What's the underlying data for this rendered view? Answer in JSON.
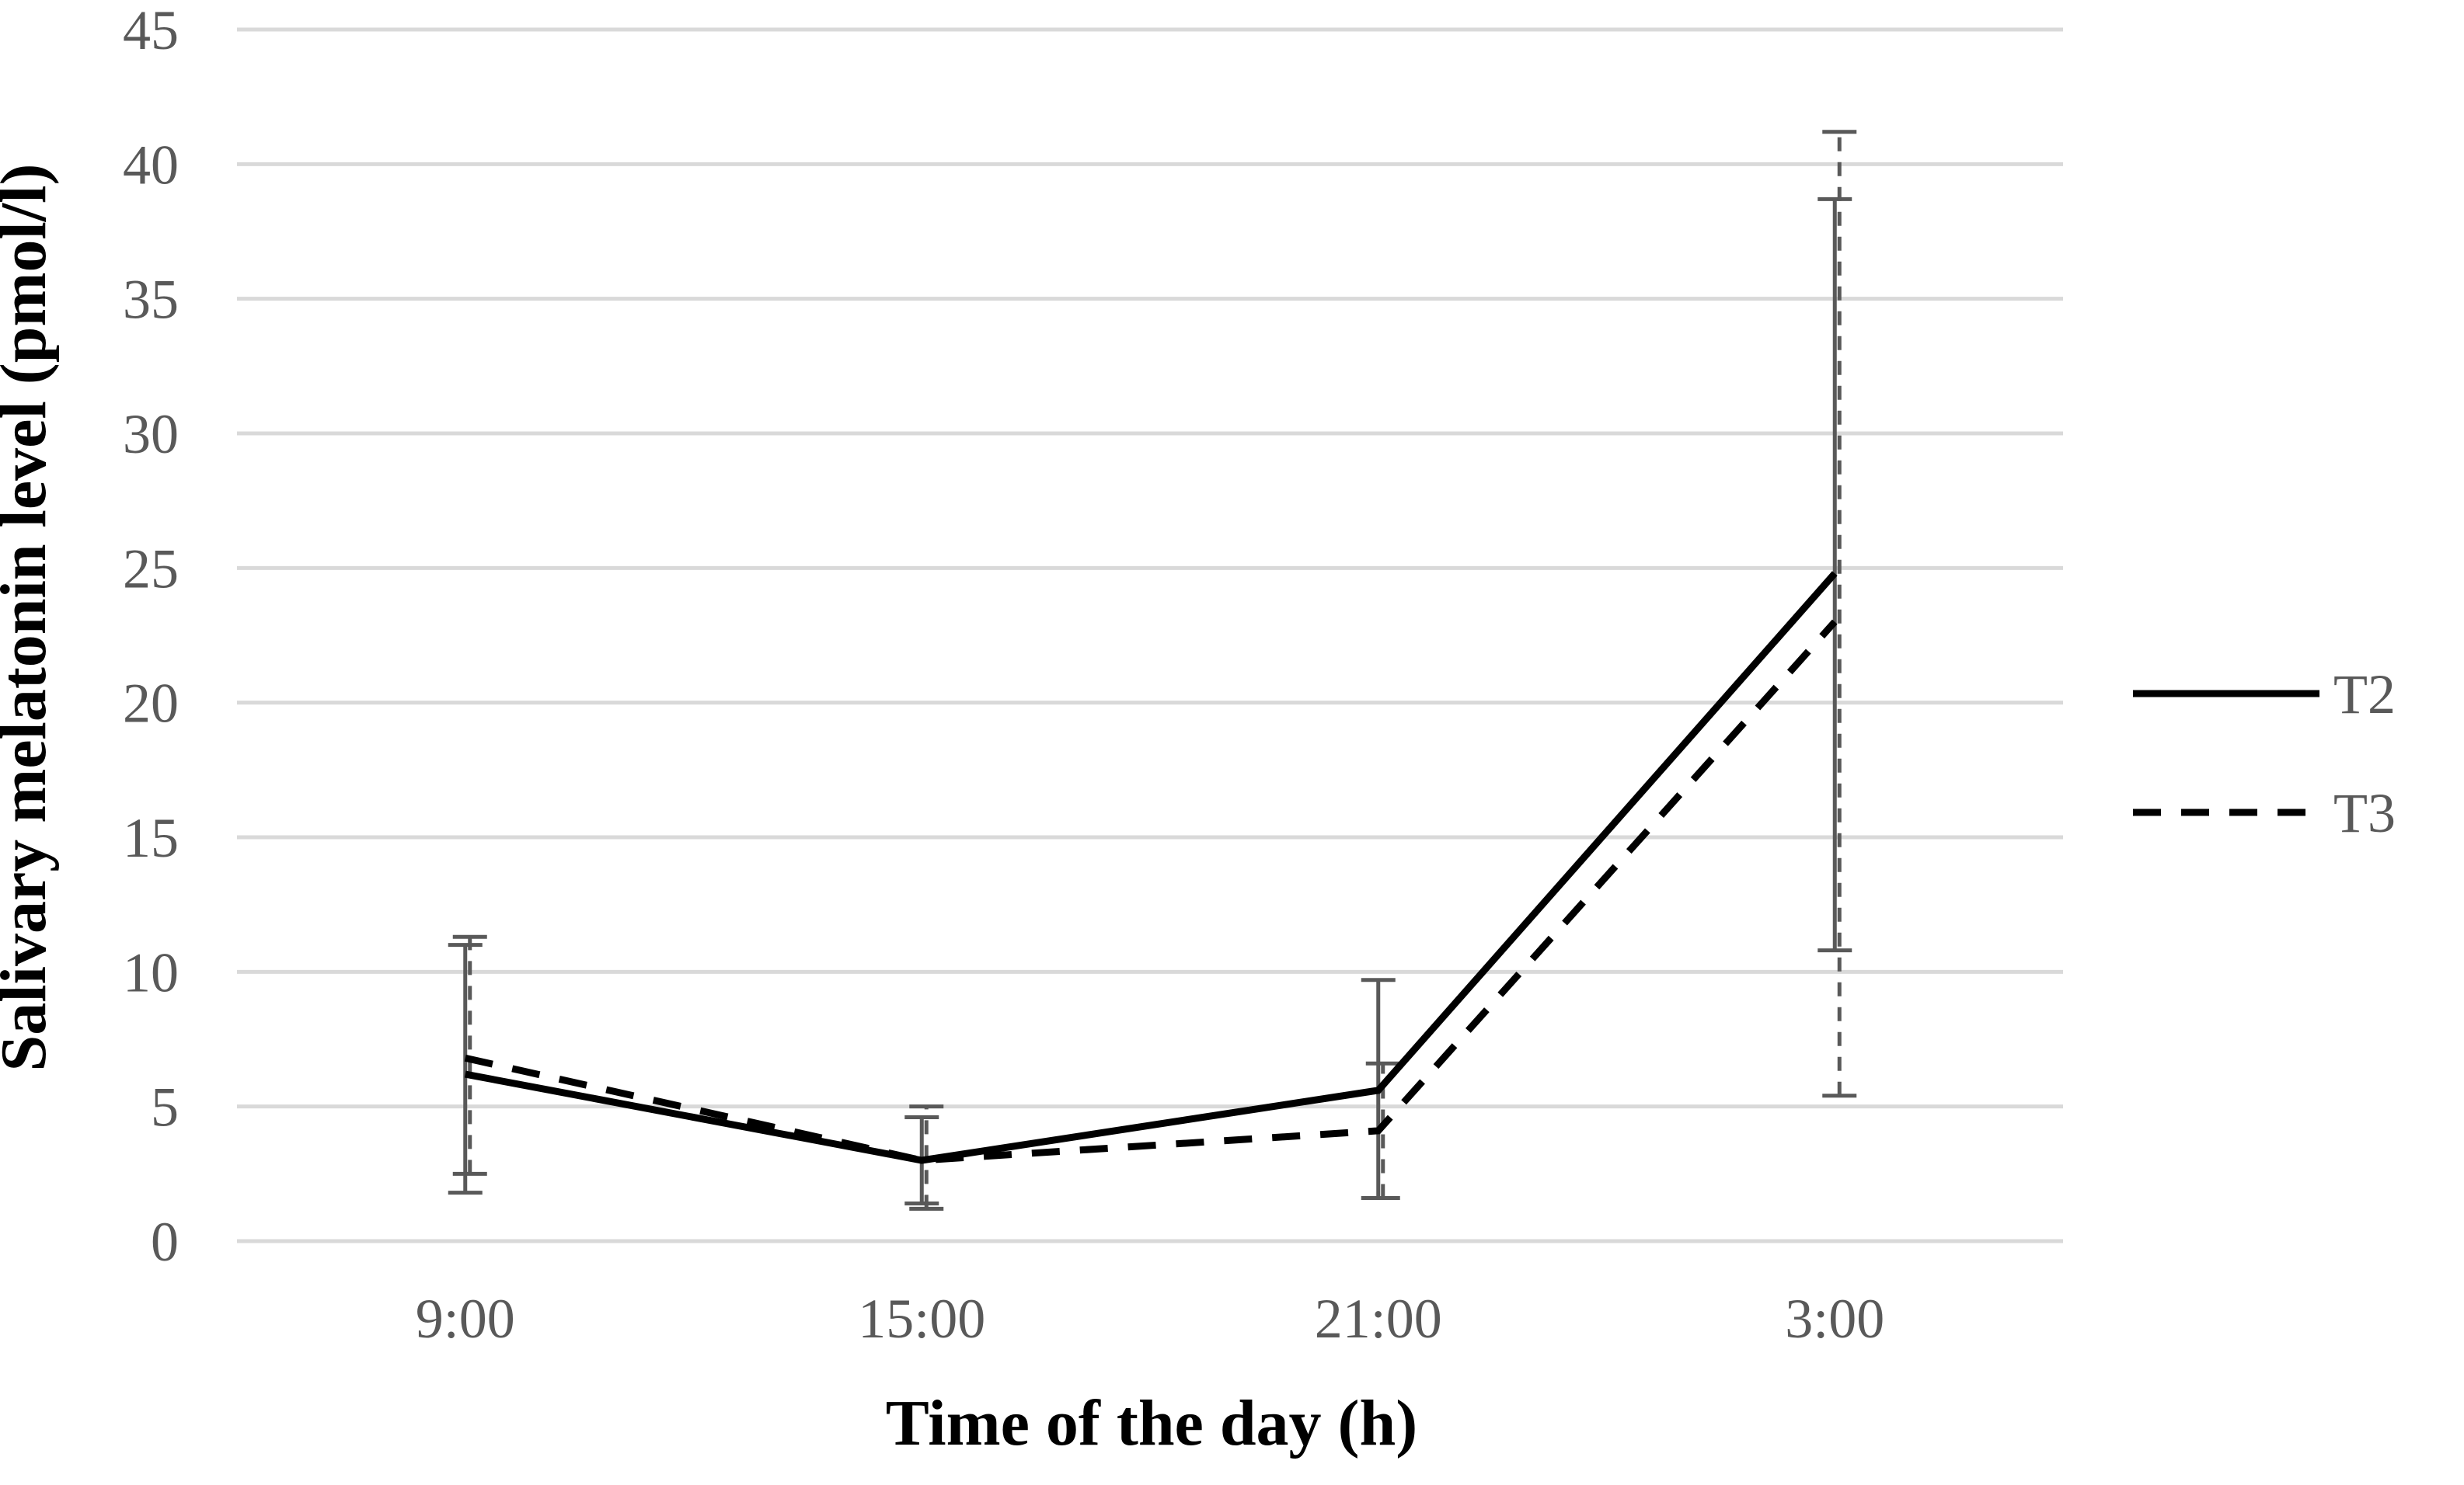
{
  "chart_data": {
    "type": "line",
    "title": "",
    "xlabel": "Time of the day (h)",
    "ylabel": "Salivary melatonin level (pmol/l)",
    "categories": [
      "9:00",
      "15:00",
      "21:00",
      "3:00"
    ],
    "ylim": [
      0,
      45
    ],
    "yticks": [
      0,
      5,
      10,
      15,
      20,
      25,
      30,
      35,
      40,
      45
    ],
    "grid": "horizontal",
    "legend_position": "right",
    "series": [
      {
        "name": "T2",
        "line_style": "solid",
        "color": "#000000",
        "values": [
          6.2,
          3.0,
          5.6,
          24.8
        ],
        "error_low": [
          1.8,
          1.4,
          1.6,
          10.8
        ],
        "error_high": [
          11.0,
          4.6,
          9.7,
          38.7
        ]
      },
      {
        "name": "T3",
        "line_style": "dashed",
        "color": "#000000",
        "values": [
          6.8,
          3.0,
          4.1,
          23.0
        ],
        "error_low": [
          2.5,
          1.2,
          1.6,
          5.4
        ],
        "error_high": [
          11.3,
          5.0,
          6.6,
          41.2
        ]
      }
    ],
    "error_bar_color": "#595959",
    "gridline_color": "#d9d9d9"
  }
}
